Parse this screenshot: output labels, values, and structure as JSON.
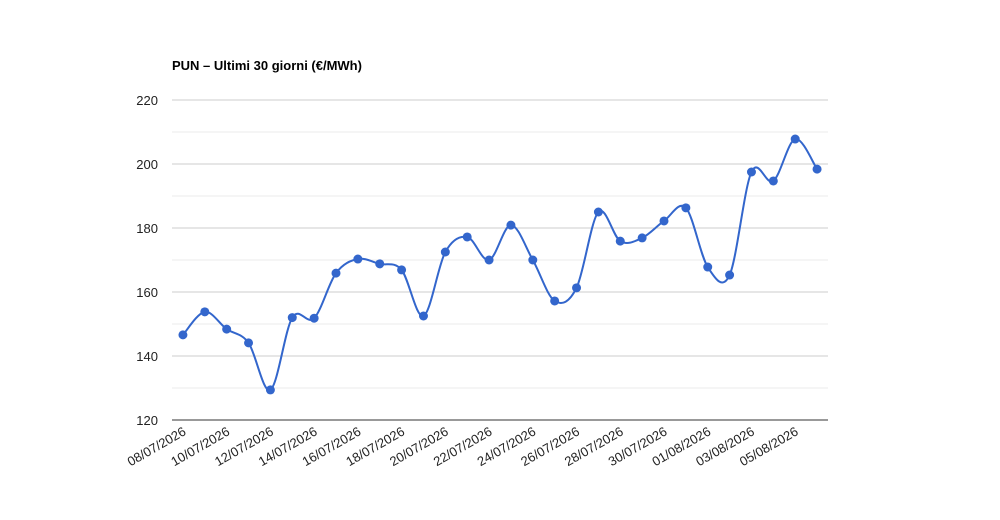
{
  "chart_data": {
    "type": "line",
    "title": "PUN – Ultimi 30 giorni (€/MWh)",
    "categories": [
      "08/07/2026",
      null,
      "10/07/2026",
      null,
      "12/07/2026",
      null,
      "14/07/2026",
      null,
      "16/07/2026",
      null,
      "18/07/2026",
      null,
      "20/07/2026",
      null,
      "22/07/2026",
      null,
      "24/07/2026",
      null,
      "26/07/2026",
      null,
      "28/07/2026",
      null,
      "30/07/2026",
      null,
      "01/08/2026",
      null,
      "03/08/2026",
      null,
      "05/08/2026",
      null
    ],
    "series": [
      {
        "color": "#3366cc",
        "values": [
          146.6,
          153.8,
          148.4,
          144.1,
          129.4,
          152.0,
          151.8,
          165.9,
          170.3,
          168.8,
          166.9,
          152.5,
          172.5,
          177.2,
          170.0,
          180.9,
          170.0,
          157.2,
          161.3,
          185.0,
          175.9,
          176.9,
          182.2,
          186.3,
          167.8,
          165.3,
          197.5,
          194.7,
          207.8,
          198.4
        ]
      }
    ],
    "ylim": [
      120,
      220
    ],
    "yticks": [
      120,
      140,
      160,
      180,
      200,
      220
    ],
    "minor_yticks": [
      130,
      150,
      170,
      190,
      210
    ],
    "grid": true,
    "smooth": true
  }
}
